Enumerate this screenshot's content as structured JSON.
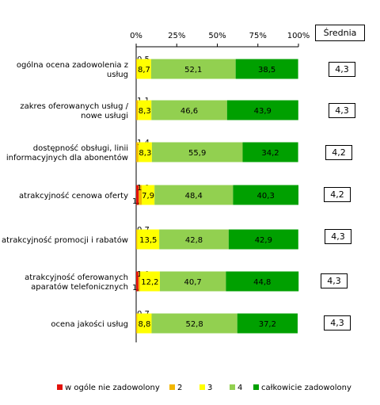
{
  "chart_data": {
    "type": "bar",
    "stacked": true,
    "orientation": "horizontal",
    "x_ticks": [
      "0%",
      "25%",
      "50%",
      "75%",
      "100%"
    ],
    "xlim": [
      0,
      100
    ],
    "categories": [
      [
        "ogólna ocena zadowolenia z",
        "usług"
      ],
      [
        "zakres oferowanych usług /",
        "nowe usługi"
      ],
      [
        "dostępność obsługi, linii",
        "informacyjnych dla abonentów"
      ],
      [
        "atrakcyjność cenowa oferty"
      ],
      [
        "atrakcyjność promocji i rabatów"
      ],
      [
        "atrakcyjność oferowanych",
        "aparatów telefonicznych"
      ],
      [
        "ocena jakości usług"
      ]
    ],
    "series": [
      {
        "name": "w ogóle nie zadowolony",
        "color": "#e3120b",
        "values": [
          0.0,
          0.0,
          0.0,
          1.6,
          0.0,
          1.4,
          0.0
        ],
        "labels": [
          "",
          "",
          "",
          "1,6",
          "",
          "1,4",
          ""
        ]
      },
      {
        "name": "2",
        "color": "#f2b700",
        "values": [
          0.5,
          1.1,
          1.4,
          1.8,
          0.7,
          1.0,
          0.7
        ],
        "labels": [
          "0,5",
          "1,1",
          "1,4",
          "1,8",
          "0,7",
          "1,0",
          "0,7"
        ]
      },
      {
        "name": "3",
        "color": "#ffff00",
        "values": [
          8.7,
          8.3,
          8.3,
          7.9,
          13.5,
          12.2,
          8.8
        ],
        "labels": [
          "8,7",
          "8,3",
          "8,3",
          "7,9",
          "13,5",
          "12,2",
          "8,8"
        ]
      },
      {
        "name": "4",
        "color": "#92d050",
        "values": [
          52.1,
          46.6,
          55.9,
          48.4,
          42.8,
          40.7,
          52.8
        ],
        "labels": [
          "52,1",
          "46,6",
          "55,9",
          "48,4",
          "42,8",
          "40,7",
          "52,8"
        ]
      },
      {
        "name": "całkowicie zadowolony",
        "color": "#00a000",
        "values": [
          38.5,
          43.9,
          34.2,
          40.3,
          42.9,
          44.8,
          37.2
        ],
        "labels": [
          "38,5",
          "43,9",
          "34,2",
          "40,3",
          "42,9",
          "44,8",
          "37,2"
        ]
      }
    ]
  },
  "means": {
    "header": "Średnia",
    "values": [
      "4,3",
      "4,3",
      "4,2",
      "4,2",
      "4,3",
      "4,3",
      "4,3"
    ]
  }
}
